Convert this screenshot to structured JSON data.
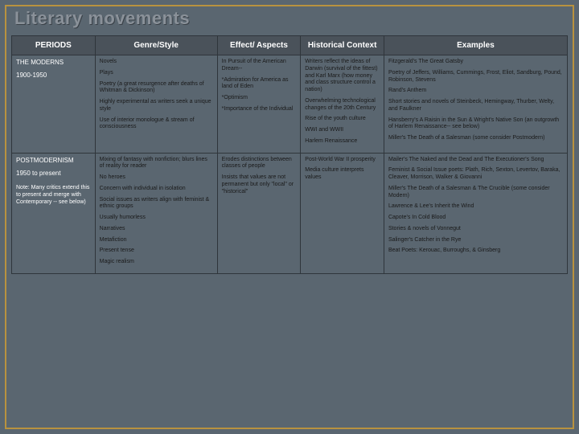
{
  "title": "Literary movements",
  "headers": [
    "PERIODS",
    "Genre/Style",
    "Effect/  Aspects",
    "Historical Context",
    "Examples"
  ],
  "rows": [
    {
      "period": {
        "label": "THE MODERNS",
        "years": "1900-1950",
        "note": ""
      },
      "genre": [
        "Novels",
        "Plays",
        "Poetry (a great resurgence after deaths of Whitman & Dickinson)",
        "Highly experimental as writers seek a unique style",
        "Use of interior monologue & stream of consciousness"
      ],
      "effect": [
        "In Pursuit of the American Dream--",
        "*Admiration for America as land of Eden",
        "*Optimism",
        "*Importance of the Individual"
      ],
      "context": [
        "Writers reflect the ideas of Darwin (survival of the fittest) and Karl Marx (how money and class structure control a nation)",
        "Overwhelming technological changes of the 20th Century",
        "Rise of the youth culture",
        "WWI and WWII",
        "Harlem Renaissance"
      ],
      "examples": [
        "Fitzgerald's The Great Gatsby",
        "Poetry of Jeffers, Williams, Cummings, Frost, Eliot, Sandburg, Pound, Robinson, Stevens",
        "Rand's Anthem",
        "Short stories and novels of Steinbeck, Hemingway, Thurber, Welty, and Faulkner",
        "Hansberry's A Raisin in the Sun & Wright's Native Son (an outgrowth of Harlem Renaissance-- see below)",
        "Miller's The Death of a Salesman (some consider Postmodern)"
      ]
    },
    {
      "period": {
        "label": "POSTMODERNISM",
        "years": "1950 to present",
        "note": "Note: Many critics extend this to present and merge with Contemporary -- see below)"
      },
      "genre": [
        "Mixing of fantasy with nonfiction; blurs lines of reality for reader",
        "No heroes",
        "Concern with individual in isolation",
        "Social issues as writers align with feminist & ethnic groups",
        "Usually humorless",
        "Narratives",
        "Metafiction",
        "Present tense",
        "Magic realism"
      ],
      "effect": [
        "Erodes distinctions between classes of people",
        "Insists that values are not permanent but only \"local\" or \"historical\""
      ],
      "context": [
        "Post-World War II prosperity",
        "Media culture interprets values"
      ],
      "examples": [
        "Mailer's The Naked and the Dead and The Executioner's Song",
        "Feminist & Social Issue poets: Plath, Rich, Sexton, Levertov, Baraka, Cleaver, Morrison, Walker & Giovanni",
        "Miller's The Death of a Salesman & The Crucible (some consider Modern)",
        "Lawrence & Lee's Inherit the Wind",
        "Capote's In Cold Blood",
        "Stories & novels of Vonnegut",
        "Salinger's Catcher in the Rye",
        "Beat Poets: Kerouac, Burroughs, & Ginsberg"
      ]
    }
  ]
}
